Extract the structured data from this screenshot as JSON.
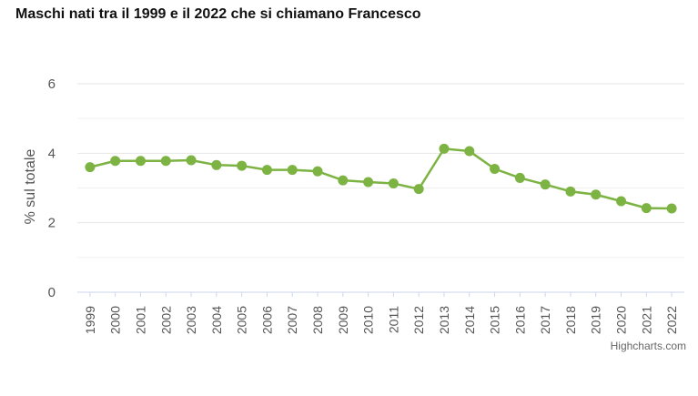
{
  "chart_data": {
    "type": "line",
    "title": "Maschi nati tra il 1999 e il 2022 che si chiamano Francesco",
    "ylabel": "% sul totale",
    "xlabel": "",
    "x": [
      "1999",
      "2000",
      "2001",
      "2002",
      "2003",
      "2004",
      "2005",
      "2006",
      "2007",
      "2008",
      "2009",
      "2010",
      "2011",
      "2012",
      "2013",
      "2014",
      "2015",
      "2016",
      "2017",
      "2018",
      "2019",
      "2020",
      "2021",
      "2022"
    ],
    "series": [
      {
        "values": [
          3.6,
          3.78,
          3.78,
          3.78,
          3.8,
          3.66,
          3.64,
          3.52,
          3.52,
          3.48,
          3.22,
          3.17,
          3.13,
          2.97,
          4.13,
          4.06,
          3.55,
          3.29,
          3.1,
          2.9,
          2.81,
          2.62,
          2.42,
          2.41
        ]
      }
    ],
    "ylim": [
      0,
      6
    ],
    "yticks": [
      0,
      2,
      4,
      6
    ],
    "grid": true,
    "color": "#7cb342",
    "credits": "Highcharts.com"
  }
}
